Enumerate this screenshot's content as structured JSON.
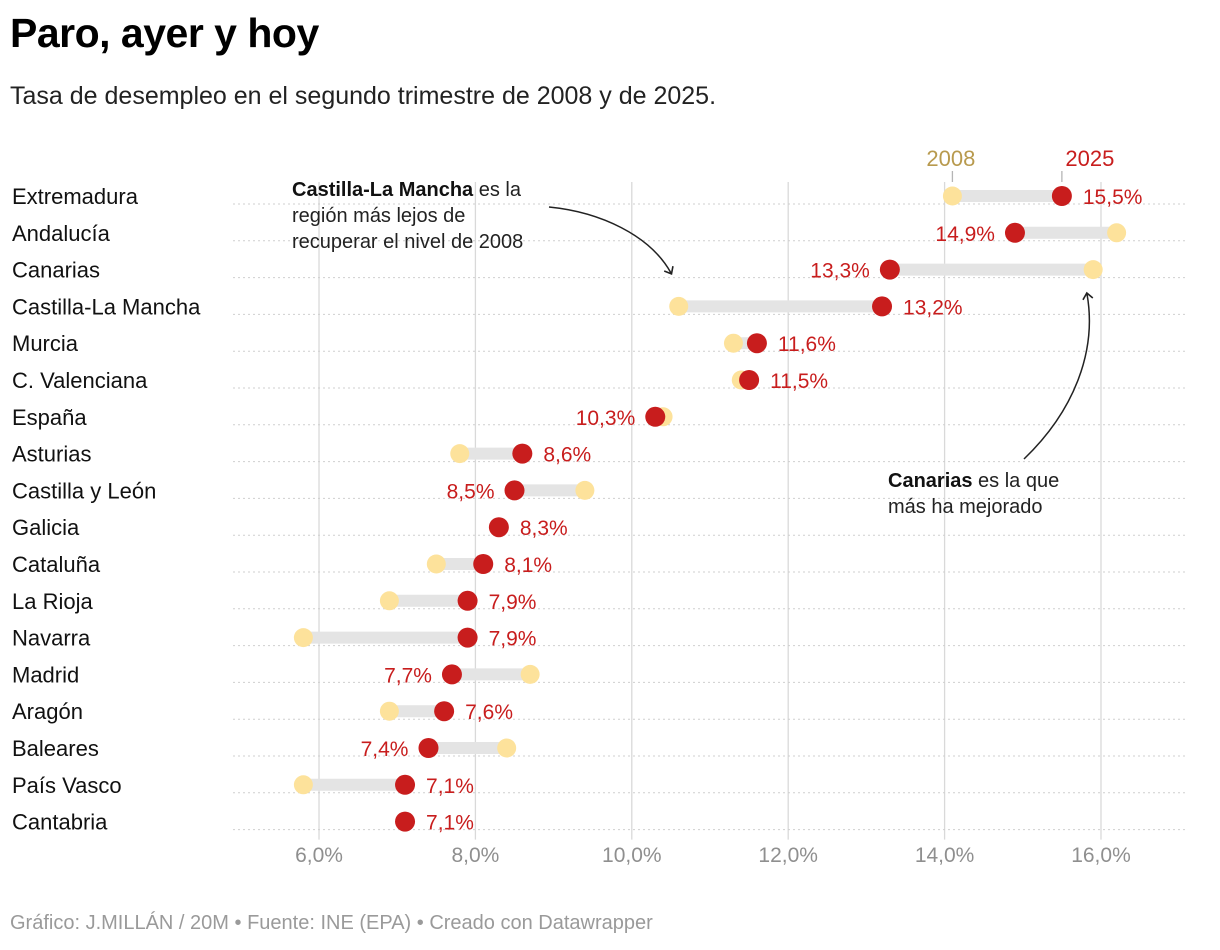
{
  "title": "Paro, ayer y hoy",
  "subtitle": "Tasa de desempleo en el segundo trimestre de 2008 y de 2025.",
  "footer": "Gráfico: J.MILLÁN / 20M • Fuente: INE (EPA) • Creado con Datawrapper",
  "colors": {
    "y2008": "#fde29b",
    "y2025": "#c81d1d",
    "bar": "#e4e4e4",
    "grid": "#d9d9d9",
    "legend2008": "#b89a4e",
    "axis": "#8f8f8f"
  },
  "chart_data": {
    "type": "dot-range",
    "title": "Paro, ayer y hoy",
    "subtitle": "Tasa de desempleo en el segundo trimestre de 2008 y de 2025.",
    "legend": {
      "start_label": "2008",
      "end_label": "2025"
    },
    "x_range": [
      4.9,
      17.1
    ],
    "x_ticks": [
      6,
      8,
      10,
      12,
      14,
      16
    ],
    "x_tick_labels": [
      "6,0%",
      "8,0%",
      "10,0%",
      "12,0%",
      "14,0%",
      "16,0%"
    ],
    "rows": [
      {
        "region": "Extremadura",
        "v2008": 14.1,
        "v2025": 15.5,
        "label": "15,5%"
      },
      {
        "region": "Andalucía",
        "v2008": 16.2,
        "v2025": 14.9,
        "label": "14,9%"
      },
      {
        "region": "Canarias",
        "v2008": 15.9,
        "v2025": 13.3,
        "label": "13,3%"
      },
      {
        "region": "Castilla-La Mancha",
        "v2008": 10.6,
        "v2025": 13.2,
        "label": "13,2%"
      },
      {
        "region": "Murcia",
        "v2008": 11.3,
        "v2025": 11.6,
        "label": "11,6%"
      },
      {
        "region": "C. Valenciana",
        "v2008": 11.4,
        "v2025": 11.5,
        "label": "11,5%"
      },
      {
        "region": "España",
        "v2008": 10.4,
        "v2025": 10.3,
        "label": "10,3%"
      },
      {
        "region": "Asturias",
        "v2008": 7.8,
        "v2025": 8.6,
        "label": "8,6%"
      },
      {
        "region": "Castilla y León",
        "v2008": 9.4,
        "v2025": 8.5,
        "label": "8,5%"
      },
      {
        "region": "Galicia",
        "v2008": 8.3,
        "v2025": 8.3,
        "label": "8,3%"
      },
      {
        "region": "Cataluña",
        "v2008": 7.5,
        "v2025": 8.1,
        "label": "8,1%"
      },
      {
        "region": "La Rioja",
        "v2008": 6.9,
        "v2025": 7.9,
        "label": "7,9%"
      },
      {
        "region": "Navarra",
        "v2008": 5.8,
        "v2025": 7.9,
        "label": "7,9%"
      },
      {
        "region": "Madrid",
        "v2008": 8.7,
        "v2025": 7.7,
        "label": "7,7%"
      },
      {
        "region": "Aragón",
        "v2008": 6.9,
        "v2025": 7.6,
        "label": "7,6%"
      },
      {
        "region": "Baleares",
        "v2008": 8.4,
        "v2025": 7.4,
        "label": "7,4%"
      },
      {
        "region": "País Vasco",
        "v2008": 5.8,
        "v2025": 7.1,
        "label": "7,1%"
      },
      {
        "region": "Cantabria",
        "v2008": 7.1,
        "v2025": 7.1,
        "label": "7,1%"
      }
    ],
    "annotations": [
      {
        "bold": "Castilla-La Mancha",
        "lines": [
          " es la",
          "región más lejos de",
          "recuperar el nivel de 2008"
        ]
      },
      {
        "bold": "Canarias",
        "lines": [
          " es la que",
          "más ha mejorado"
        ]
      }
    ]
  }
}
